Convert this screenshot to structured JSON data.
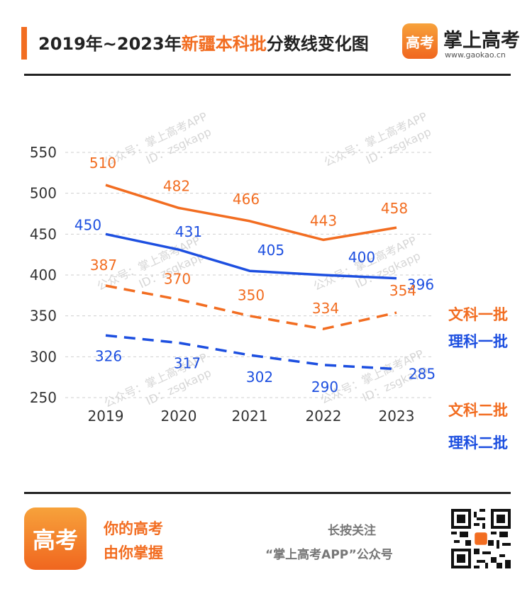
{
  "header": {
    "title_prefix": "2019年~2023年",
    "title_highlight": "新疆本科批",
    "title_suffix": "分数线变化图",
    "brand_logo": "高考",
    "brand_name": "掌上高考",
    "brand_url": "www.gaokao.cn"
  },
  "watermark": {
    "line1": "公众号：掌上高考APP",
    "line2": "ID：zsgkapp"
  },
  "footer": {
    "logo": "高考",
    "slogan1": "你的高考",
    "slogan2": "由你掌握",
    "follow1": "长按关注",
    "follow2": "“掌上高考APP”公众号"
  },
  "chart_data": {
    "type": "line",
    "title": "2019年~2023年新疆本科批分数线变化图",
    "categories": [
      "2019",
      "2020",
      "2021",
      "2022",
      "2023"
    ],
    "ylim": [
      250,
      550
    ],
    "yticks": [
      250,
      300,
      350,
      400,
      450,
      500,
      550
    ],
    "grid": "horizontal dashed",
    "legend": "right, end of lines",
    "series": [
      {
        "name": "文科一批",
        "values": [
          510,
          482,
          466,
          443,
          458
        ],
        "color": "#f26d21",
        "dash": false
      },
      {
        "name": "理科一批",
        "values": [
          450,
          431,
          405,
          400,
          396
        ],
        "color": "#1d4fe0",
        "dash": false
      },
      {
        "name": "文科二批",
        "values": [
          387,
          370,
          350,
          334,
          354
        ],
        "color": "#f26d21",
        "dash": true
      },
      {
        "name": "理科二批",
        "values": [
          326,
          317,
          302,
          290,
          285
        ],
        "color": "#1d4fe0",
        "dash": true
      }
    ]
  }
}
